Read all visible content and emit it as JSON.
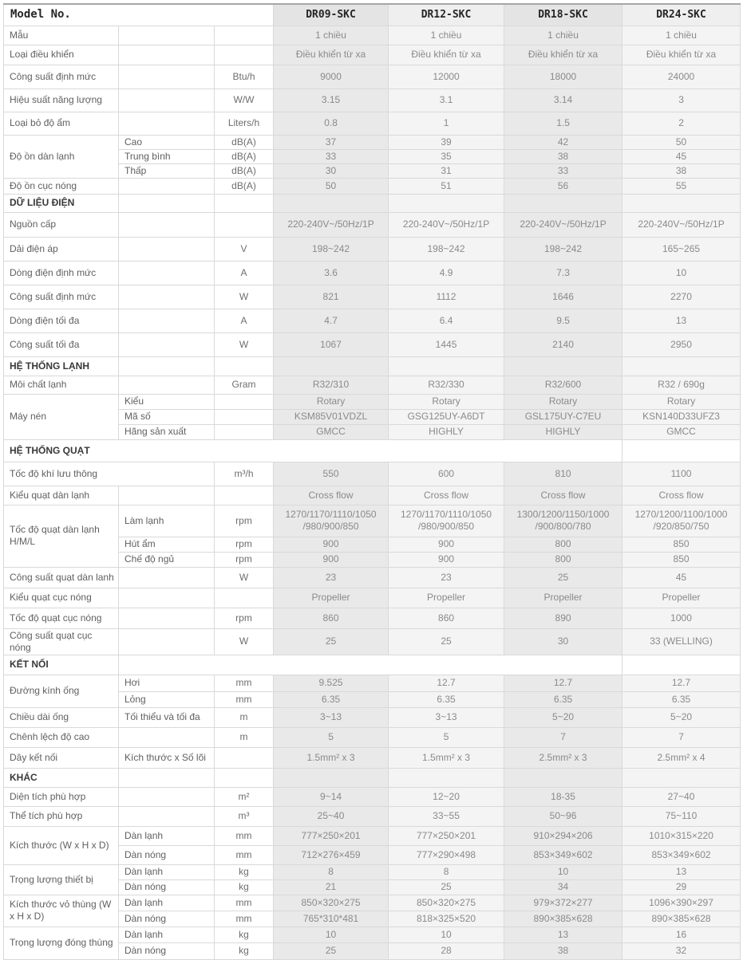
{
  "table": {
    "header": {
      "label": "Model No.",
      "models": [
        "DR09-SKC",
        "DR12-SKC",
        "DR18-SKC",
        "DR24-SKC"
      ]
    },
    "colors": {
      "value_column_dark": "#e9e9e9",
      "value_column_light": "#f4f4f4",
      "header_cell_dark": "#e4e4e4",
      "header_cell_light": "#efefef",
      "border": "#d9d9d9"
    },
    "rows": [
      {
        "label": "Mẫu",
        "sub": "",
        "unit": "",
        "values": [
          "1 chiều",
          "1 chiều",
          "1 chiều",
          "1 chiều"
        ]
      },
      {
        "label": "Loại điều khiển",
        "sub": "",
        "unit": "",
        "values": [
          "Điều khiển từ xa",
          "Điều khiển từ xa",
          "Điều khiển từ xa",
          "Điều khiển từ xa"
        ]
      },
      {
        "label": "Công suất định mức",
        "sub": "",
        "unit": "Btu/h",
        "values": [
          "9000",
          "12000",
          "18000",
          "24000"
        ]
      },
      {
        "label": "Hiệu suất năng lượng",
        "sub": "",
        "unit": "W/W",
        "values": [
          "3.15",
          "3.1",
          "3.14",
          "3"
        ]
      },
      {
        "label": "Loại bỏ độ ẩm",
        "sub": "",
        "unit": "Liters/h",
        "values": [
          "0.8",
          "1",
          "1.5",
          "2"
        ]
      },
      {
        "label": "Độ ồn dàn lạnh",
        "rowspan": 3,
        "sub": "Cao",
        "unit": "dB(A)",
        "values": [
          "37",
          "39",
          "42",
          "50"
        ]
      },
      {
        "label": null,
        "sub": "Trung bình",
        "unit": "dB(A)",
        "values": [
          "33",
          "35",
          "38",
          "45"
        ]
      },
      {
        "label": null,
        "sub": "Thấp",
        "unit": "dB(A)",
        "values": [
          "30",
          "31",
          "33",
          "38"
        ]
      },
      {
        "label": "Độ ồn cục nóng",
        "sub": "",
        "unit": "dB(A)",
        "values": [
          "50",
          "51",
          "56",
          "55"
        ]
      },
      {
        "type": "section",
        "label": "DỮ LIỆU ĐIỆN",
        "variant": "cells"
      },
      {
        "label": "Nguồn cấp",
        "sub": "",
        "unit": "",
        "values": [
          "220-240V~/50Hz/1P",
          "220-240V~/50Hz/1P",
          "220-240V~/50Hz/1P",
          "220-240V~/50Hz/1P"
        ]
      },
      {
        "label": "Dải điện áp",
        "sub": "",
        "unit": "V",
        "values": [
          "198~242",
          "198~242",
          "198~242",
          "165~265"
        ]
      },
      {
        "label": "Dòng điện định mức",
        "sub": "",
        "unit": "A",
        "values": [
          "3.6",
          "4.9",
          "7.3",
          "10"
        ]
      },
      {
        "label": "Công suất định mức",
        "sub": "",
        "unit": "W",
        "values": [
          "821",
          "1112",
          "1646",
          "2270"
        ]
      },
      {
        "label": "Dòng điện tối đa",
        "sub": "",
        "unit": "A",
        "values": [
          "4.7",
          "6.4",
          "9.5",
          "13"
        ]
      },
      {
        "label": "Công suất tối đa",
        "sub": "",
        "unit": "W",
        "values": [
          "1067",
          "1445",
          "2140",
          "2950"
        ]
      },
      {
        "type": "section",
        "label": "HỆ THỐNG LẠNH",
        "variant": "cells"
      },
      {
        "label": "Môi chất lạnh",
        "sub": "",
        "unit": "Gram",
        "values": [
          "R32/310",
          "R32/330",
          "R32/600",
          "R32 / 690g"
        ]
      },
      {
        "label": "Máy nén",
        "rowspan": 3,
        "sub": "Kiểu",
        "unit": "",
        "values": [
          "Rotary",
          "Rotary",
          "Rotary",
          "Rotary"
        ]
      },
      {
        "label": null,
        "sub": "Mã số",
        "unit": "",
        "values": [
          "KSM85V01VDZL",
          "GSG125UY-A6DT",
          "GSL175UY-C7EU",
          "KSN140D33UFZ3"
        ]
      },
      {
        "label": null,
        "sub": "Hãng sản xuất",
        "unit": "",
        "values": [
          "GMCC",
          "HIGHLY",
          "HIGHLY",
          "GMCC"
        ]
      },
      {
        "type": "section",
        "label": "HỆ THỐNG QUẠT",
        "variant": "wide"
      },
      {
        "label": "Tốc độ khí lưu thông",
        "label_colspan": 2,
        "unit": "m³/h",
        "values": [
          "550",
          "600",
          "810",
          "1100"
        ]
      },
      {
        "label": "Kiểu quạt dàn lạnh",
        "sub": "",
        "unit": "",
        "values": [
          "Cross flow",
          "Cross flow",
          "Cross flow",
          "Cross flow"
        ]
      },
      {
        "label": "Tốc độ quạt dàn lạnh H/M/L",
        "rowspan": 3,
        "sub": "Làm lạnh",
        "unit": "rpm",
        "values": [
          "1270/1170/1110/1050\n/980/900/850",
          "1270/1170/1110/1050\n/980/900/850",
          "1300/1200/1150/1000\n/900/800/780",
          "1270/1200/1100/1000\n/920/850/750"
        ]
      },
      {
        "label": null,
        "sub": "Hút ẩm",
        "unit": "rpm",
        "values": [
          "900",
          "900",
          "800",
          "850"
        ]
      },
      {
        "label": null,
        "sub": "Chế độ ngủ",
        "unit": "rpm",
        "values": [
          "900",
          "900",
          "800",
          "850"
        ]
      },
      {
        "label": "Công suất quạt dàn lanh",
        "sub": "",
        "unit": "W",
        "values": [
          "23",
          "23",
          "25",
          "45"
        ]
      },
      {
        "label": "Kiểu quạt cục nóng",
        "sub": "",
        "unit": "",
        "values": [
          "Propeller",
          "Propeller",
          "Propeller",
          "Propeller"
        ]
      },
      {
        "label": "Tốc độ quạt cục nóng",
        "sub": "",
        "unit": "rpm",
        "values": [
          "860",
          "860",
          "890",
          "1000"
        ]
      },
      {
        "label": "Công suất quạt cục nóng",
        "sub": "",
        "unit": "W",
        "values": [
          "25",
          "25",
          "30",
          "33 (WELLING)"
        ]
      },
      {
        "type": "section",
        "label": "KẾT NỐI",
        "variant": "wideB"
      },
      {
        "label": "Đường kính ống",
        "rowspan": 2,
        "sub": "Hơi",
        "unit": "mm",
        "values": [
          "9.525",
          "12.7",
          "12.7",
          "12.7"
        ]
      },
      {
        "label": null,
        "sub": "Lỏng",
        "unit": "mm",
        "values": [
          "6.35",
          "6.35",
          "6.35",
          "6.35"
        ]
      },
      {
        "label": "Chiều dài ống",
        "sub": "Tối thiểu và tối đa",
        "unit": "m",
        "values": [
          "3~13",
          "3~13",
          "5~20",
          "5~20"
        ]
      },
      {
        "label": "Chênh lệch độ cao",
        "sub": "",
        "unit": "m",
        "values": [
          "5",
          "5",
          "7",
          "7"
        ]
      },
      {
        "label": "Dây kết nối",
        "sub": "Kích thước x Số lõi",
        "unit": "",
        "values": [
          "1.5mm² x 3",
          "1.5mm² x 3",
          "2.5mm² x 3",
          "2.5mm² x 4"
        ]
      },
      {
        "type": "section",
        "label": "KHÁC",
        "variant": "cells"
      },
      {
        "label": "Diện tích phù hợp",
        "sub": "",
        "unit": "m²",
        "values": [
          "9~14",
          "12~20",
          "18-35",
          "27~40"
        ]
      },
      {
        "label": "Thể tích phù hợp",
        "sub": "",
        "unit": "m³",
        "values": [
          "25~40",
          "33~55",
          "50~96",
          "75~110"
        ]
      },
      {
        "label": "Kích thước (W x H x D)",
        "rowspan": 2,
        "sub": "Dàn lạnh",
        "unit": "mm",
        "values": [
          "777×250×201",
          "777×250×201",
          "910×294×206",
          "1010×315×220"
        ]
      },
      {
        "label": null,
        "sub": "Dàn nóng",
        "unit": "mm",
        "values": [
          "712×276×459",
          "777×290×498",
          "853×349×602",
          "853×349×602"
        ]
      },
      {
        "label": "Trọng lượng thiết bị",
        "rowspan": 2,
        "sub": "Dàn lạnh",
        "unit": "kg",
        "values": [
          "8",
          "8",
          "10",
          "13"
        ]
      },
      {
        "label": null,
        "sub": "Dàn nóng",
        "unit": "kg",
        "values": [
          "21",
          "25",
          "34",
          "29"
        ]
      },
      {
        "label": "Kích thước vỏ thùng (W x H x D)",
        "rowspan": 2,
        "sub": "Dàn lạnh",
        "unit": "mm",
        "values": [
          "850×320×275",
          "850×320×275",
          "979×372×277",
          "1096×390×297"
        ]
      },
      {
        "label": null,
        "sub": "Dàn nóng",
        "unit": "mm",
        "values": [
          "765*310*481",
          "818×325×520",
          "890×385×628",
          "890×385×628"
        ]
      },
      {
        "label": "Trọng lượng đóng thùng",
        "rowspan": 2,
        "sub": "Dàn lạnh",
        "unit": "kg",
        "values": [
          "10",
          "10",
          "13",
          "16"
        ]
      },
      {
        "label": null,
        "sub": "Dàn nóng",
        "unit": "kg",
        "values": [
          "25",
          "28",
          "38",
          "32"
        ]
      }
    ]
  }
}
